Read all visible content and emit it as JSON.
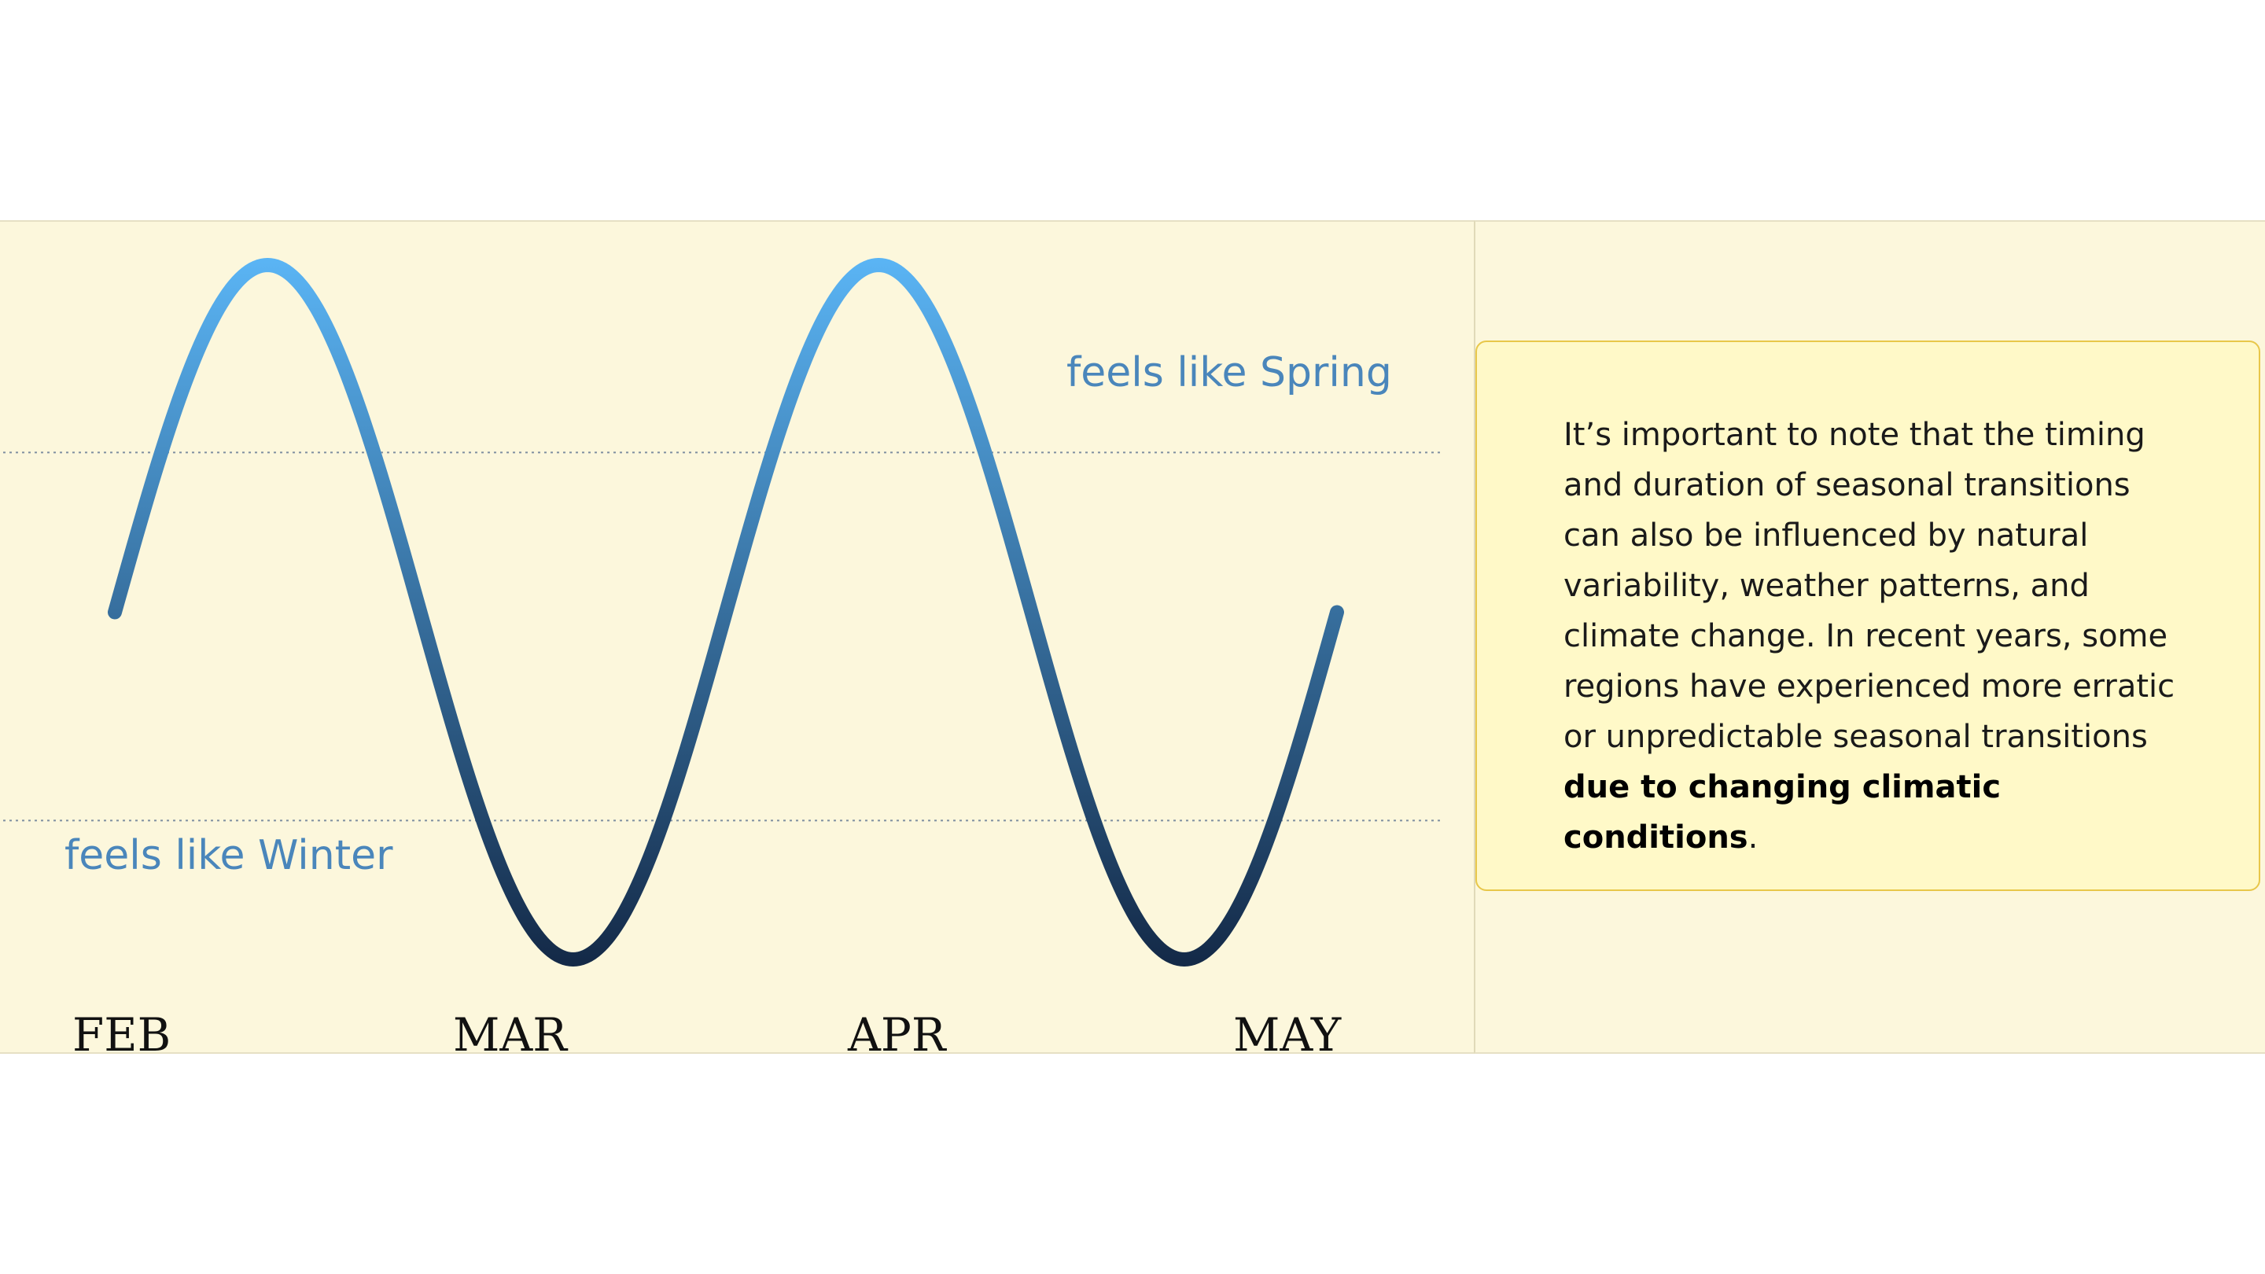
{
  "chart_data": {
    "type": "line",
    "title": "",
    "xlabel": "",
    "ylabel": "",
    "x_tick_labels": [
      "FEB",
      "MAR",
      "APR",
      "MAY"
    ],
    "series": [
      {
        "x": [
          0,
          0.5,
          1,
          1.5,
          2,
          2.5,
          3,
          3.5,
          4
        ],
        "values": [
          0,
          1,
          0,
          -1,
          0,
          1,
          0,
          -1,
          0
        ]
      }
    ],
    "ylim": [
      -1,
      1
    ],
    "reference_lines": [
      {
        "label": "feels like Spring",
        "y": 0.46
      },
      {
        "label": "feels like Winter",
        "y": -0.6
      }
    ],
    "colors": {
      "top": "#5ab4f4",
      "bottom": "#142a48",
      "reference": "#7f8fa0"
    },
    "grid": false,
    "legend": "none"
  },
  "labels": {
    "spring": "feels like Spring",
    "winter": "feels like Winter"
  },
  "months": [
    "FEB",
    "MAR",
    "APR",
    "MAY"
  ],
  "note": {
    "text": "It’s important to note that the timing and duration of seasonal transitions can also be influenced by natural variability, weather patterns, and climate change. In recent years, some regions have experienced more erratic or unpredictable seasonal transitions ",
    "bold": "due to changing climatic conditions",
    "suffix": "."
  }
}
